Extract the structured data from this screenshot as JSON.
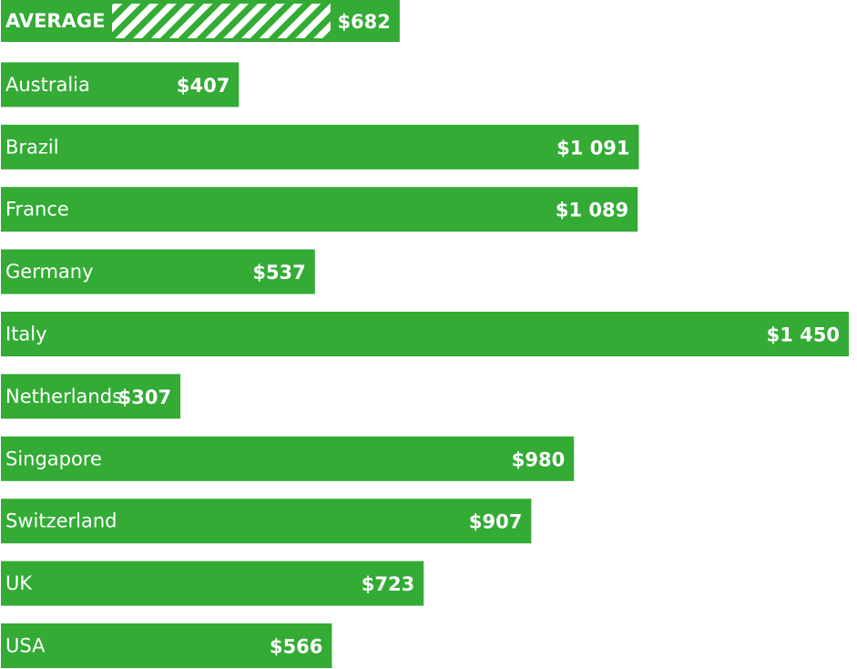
{
  "chart_data": {
    "type": "bar",
    "categories": [
      "AVERAGE",
      "Australia",
      "Brazil",
      "France",
      "Germany",
      "Italy",
      "Netherlands",
      "Singapore",
      "Switzerland",
      "UK",
      "USA"
    ],
    "values": [
      682,
      407,
      1091,
      1089,
      537,
      1450,
      307,
      980,
      907,
      723,
      566
    ],
    "value_labels": [
      "$682",
      "$407",
      "$1 091",
      "$1 089",
      "$537",
      "$1 450",
      "$307",
      "$980",
      "$907",
      "$723",
      "$566"
    ],
    "color": "#33ab35"
  }
}
